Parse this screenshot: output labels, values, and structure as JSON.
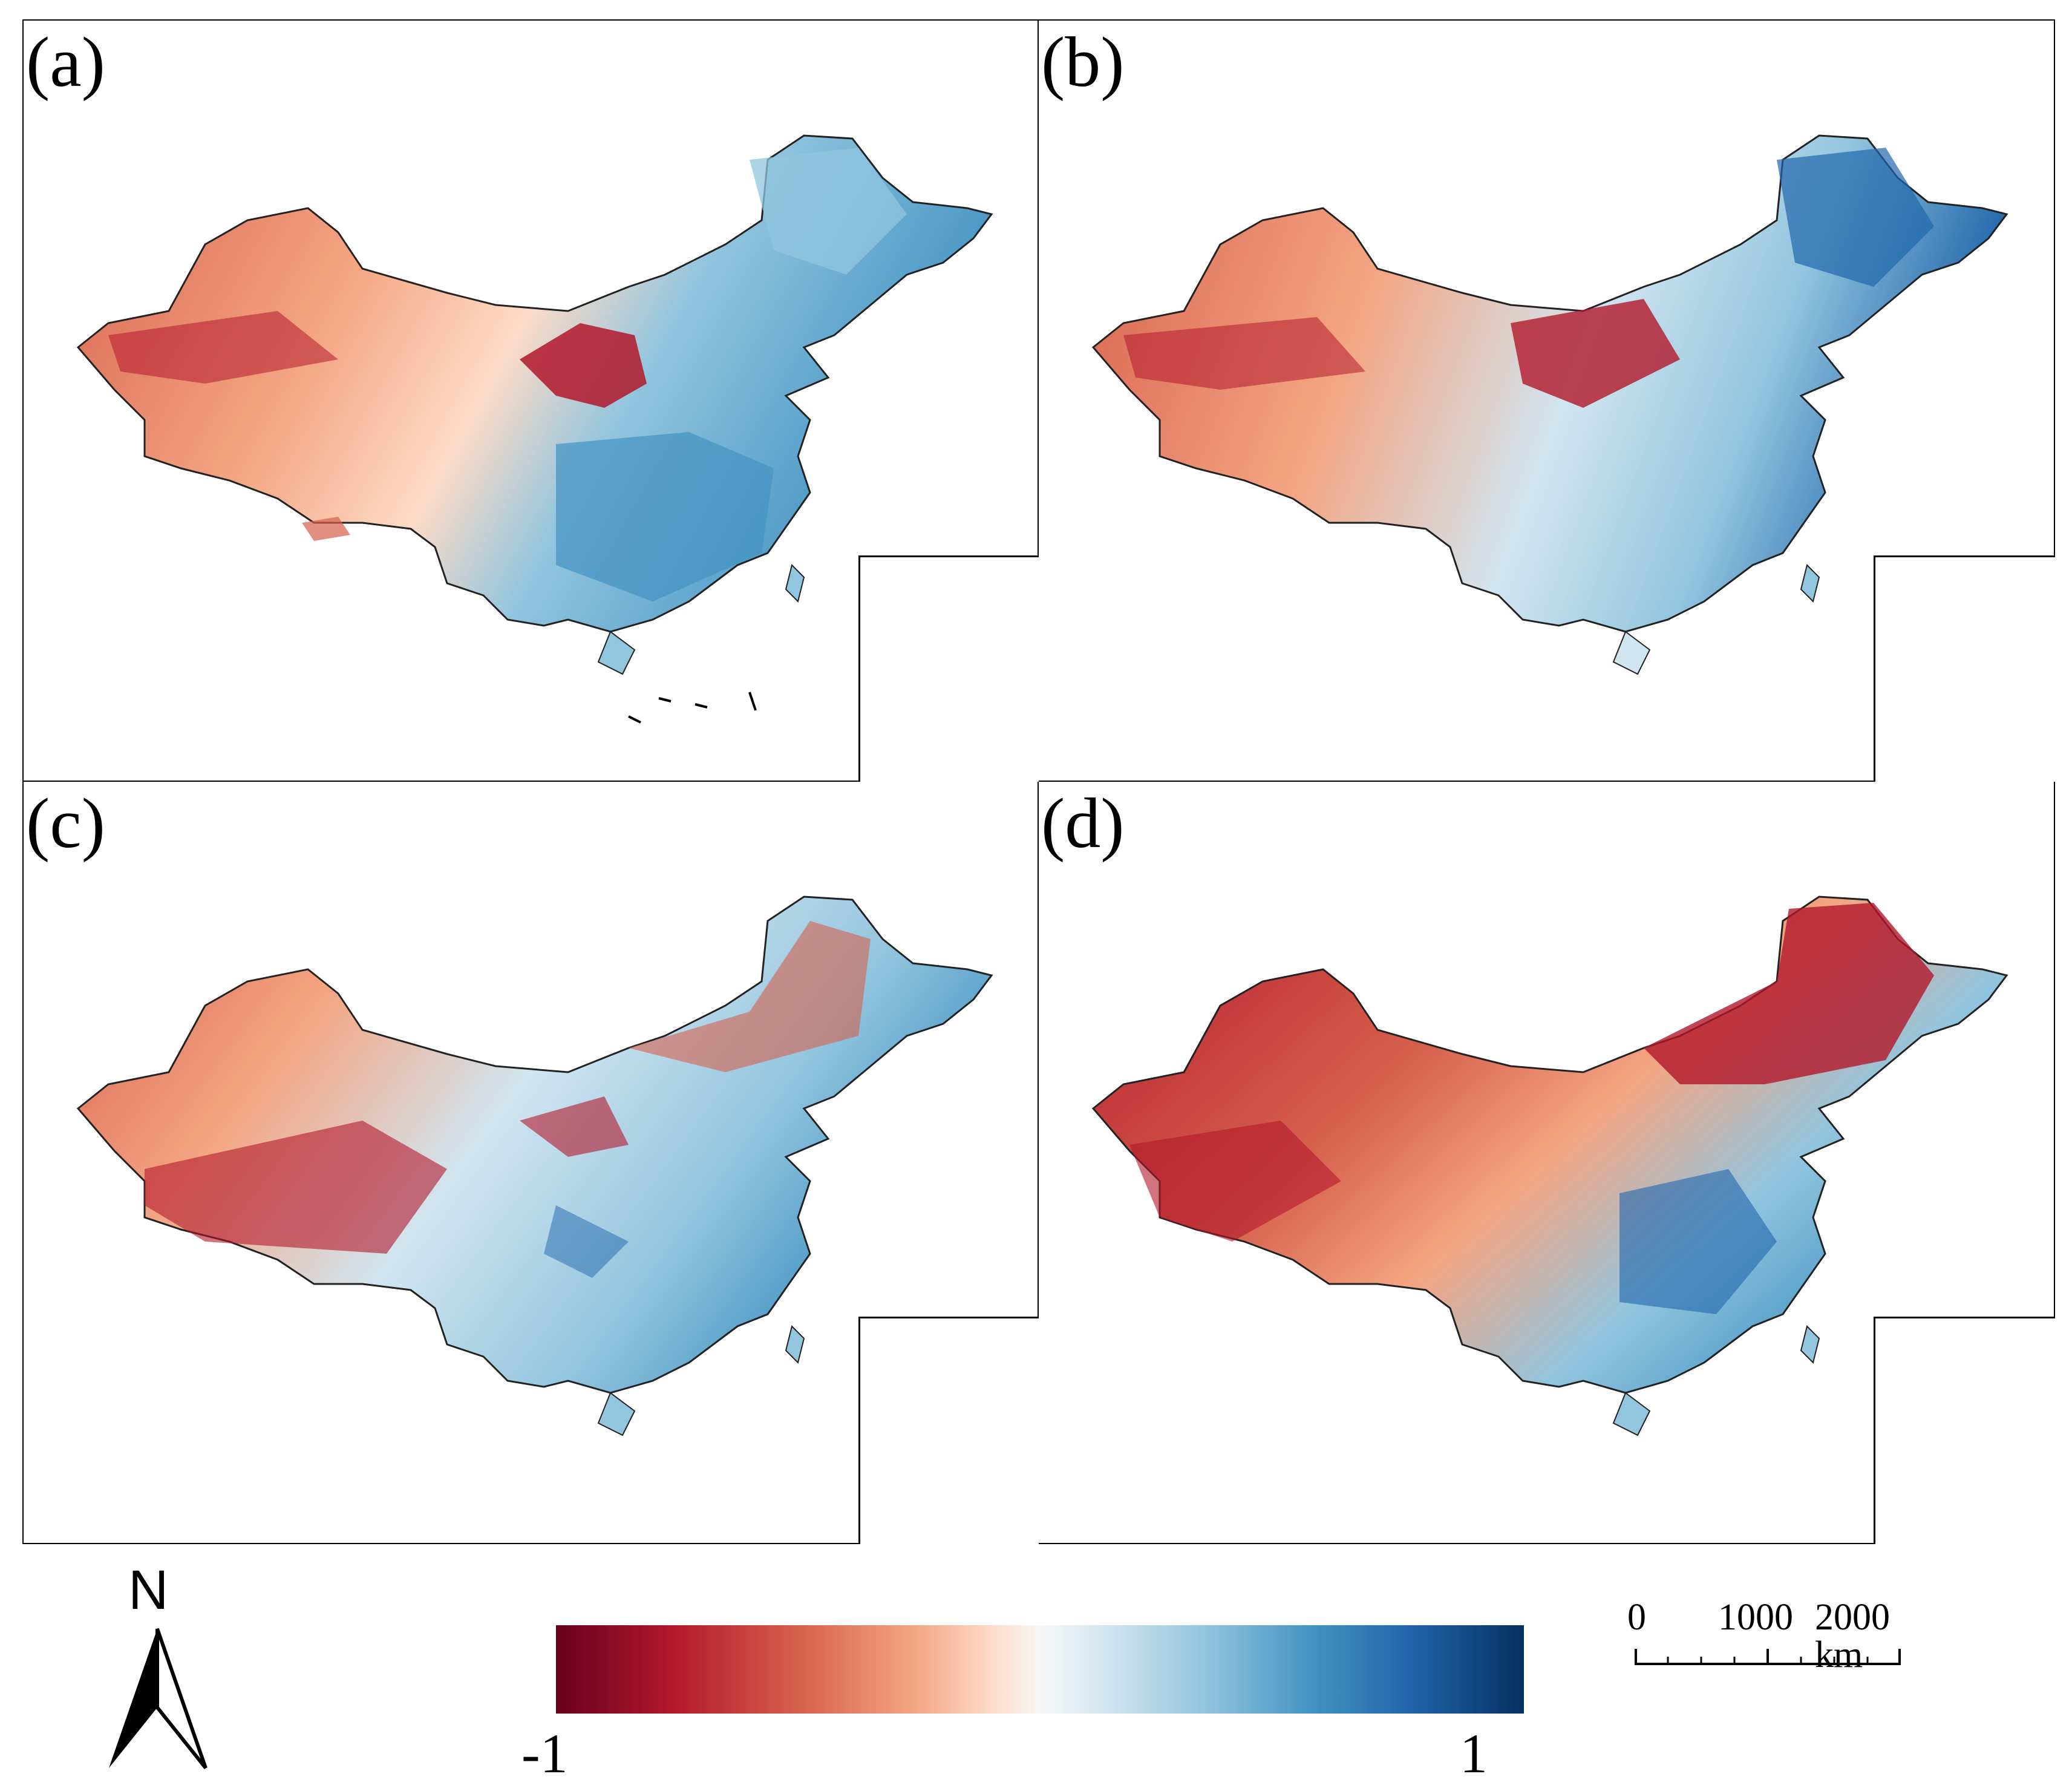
{
  "panels": [
    {
      "id": "a",
      "label": "(a)"
    },
    {
      "id": "b",
      "label": "(b)"
    },
    {
      "id": "c",
      "label": "(c)"
    },
    {
      "id": "d",
      "label": "(d)"
    }
  ],
  "legend": {
    "north_label": "N",
    "colorbar": {
      "min_label": "-1",
      "max_label": "1",
      "min_value": -1,
      "max_value": 1,
      "colors": [
        "#67001f",
        "#b2182b",
        "#d6604d",
        "#f4a582",
        "#fddbc7",
        "#f7f7f7",
        "#d1e5f0",
        "#92c5de",
        "#4393c3",
        "#2166ac",
        "#053061"
      ]
    },
    "scale": {
      "ticks": [
        "0",
        "1000",
        "2000 km"
      ]
    }
  }
}
